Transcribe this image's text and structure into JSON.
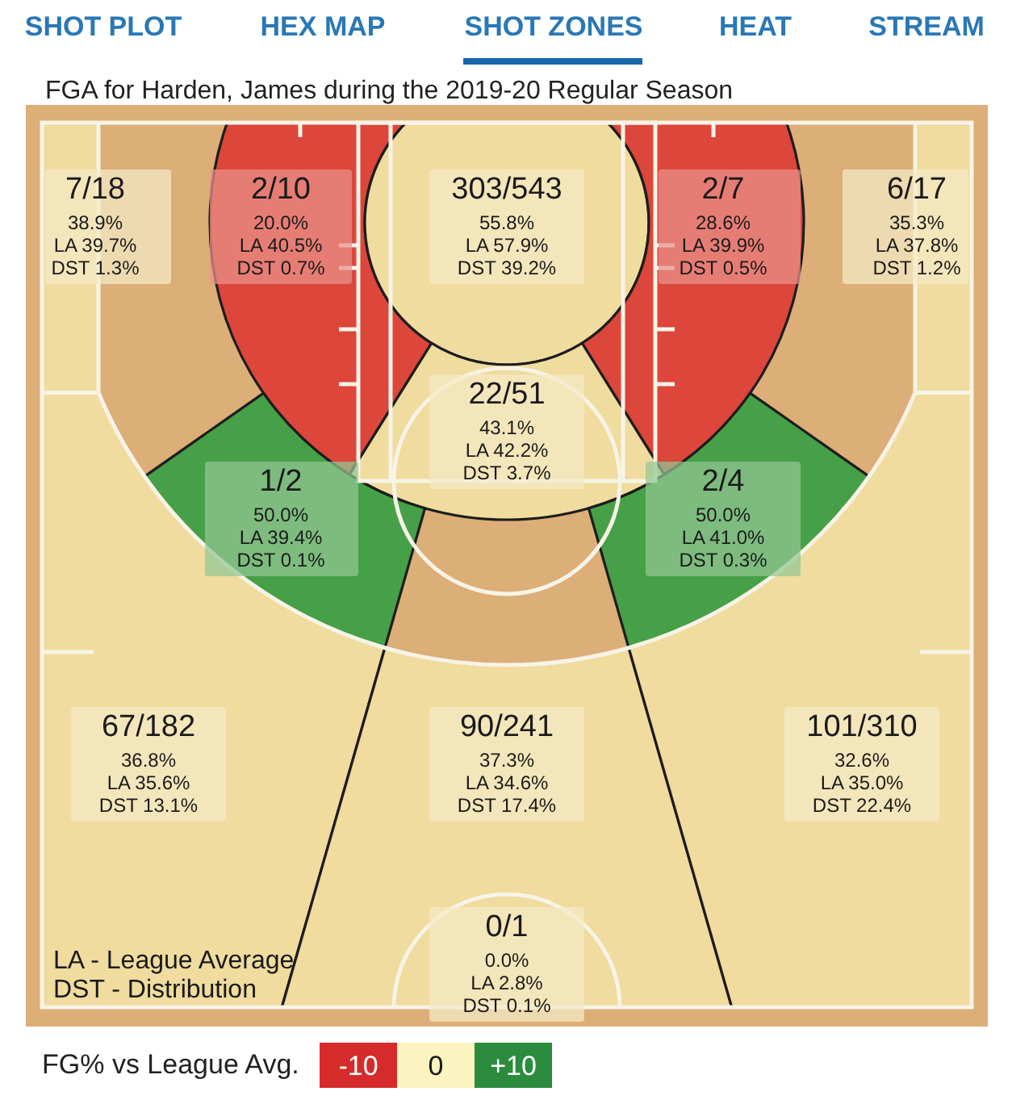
{
  "chart_data": {
    "type": "other",
    "title": "FGA for Harden, James during the 2019-20 Regular Season",
    "categories": [
      null,
      null,
      null,
      null,
      null,
      null,
      null,
      null,
      null,
      null,
      null,
      null
    ],
    "series": [
      {
        "values": [
          38.9,
          20.0,
          55.8,
          28.6,
          35.3,
          43.1,
          50.0,
          50.0,
          36.8,
          37.3,
          32.6,
          0.0
        ],
        "value_labels": [
          "38.9%",
          "20.0%",
          "55.8%",
          "28.6%",
          "35.3%",
          "43.1%",
          "50.0%",
          "50.0%",
          "36.8%",
          "37.3%",
          "32.6%",
          "0.0%"
        ],
        "colors": [
          "#efdc9e",
          "#dc463b",
          "#efdc9e",
          "#dc463b",
          "#efdc9e",
          "#efdc9e",
          "#46a047",
          "#46a047",
          "#efdc9e",
          "#efdc9e",
          "#efdc9e",
          "#efdc9e"
        ]
      }
    ],
    "clabel": "FG% vs League Avg.",
    "annotations": [
      "SHOT PLOT",
      "HEX MAP",
      "SHOT ZONES",
      "HEAT",
      "STREAM",
      "7/18",
      "LA 39.7%",
      "DST 1.3%",
      "2/10",
      "LA 40.5%",
      "DST 0.7%",
      "303/543",
      "LA 57.9%",
      "DST 39.2%",
      "2/7",
      "LA 39.9%",
      "DST 0.5%",
      "6/17",
      "LA 37.8%",
      "DST 1.2%",
      "22/51",
      "LA 42.2%",
      "DST 3.7%",
      "1/2",
      "LA 39.4%",
      "DST 0.1%",
      "2/4",
      "LA 41.0%",
      "DST 0.3%",
      "67/182",
      "LA 35.6%",
      "DST 13.1%",
      "90/241",
      "LA 34.6%",
      "DST 17.4%",
      "101/310",
      "LA 35.0%",
      "DST 22.4%",
      "0/1",
      "LA 2.8%",
      "DST 0.1%",
      "LA - League Average",
      "DST - Distribution",
      "-10",
      "0",
      "+10"
    ]
  }
}
